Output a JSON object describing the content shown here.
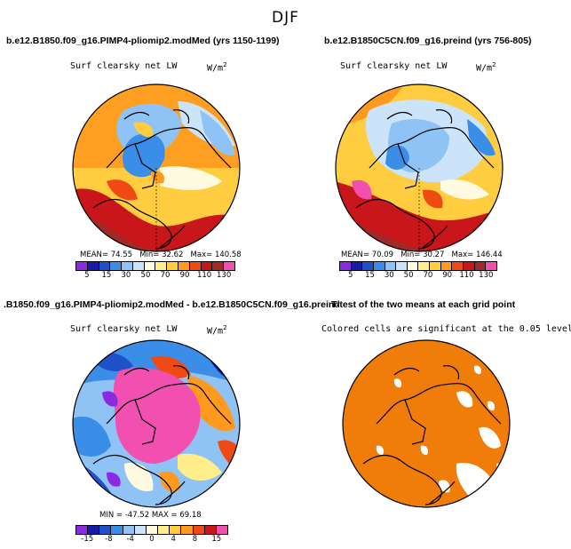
{
  "figure": {
    "title": "DJF"
  },
  "panels": [
    {
      "title": "b.e12.B1850.f09_g16.PIMP4-pliomip2.modMed (yrs 1150-1199)",
      "variable": "Surf clearsky net LW",
      "units": "W/m",
      "units_exp": "2",
      "stats": {
        "mean_label": "MEAN=",
        "mean": "74.55",
        "min_label": "Min=",
        "min": "32.62",
        "max_label": "Max=",
        "max": "140.58"
      },
      "colorbar": {
        "colors": [
          "#8a2be2",
          "#1a1aa8",
          "#1f52c9",
          "#3a8ee8",
          "#8fc3f5",
          "#cce4fa",
          "#fffbe0",
          "#ffee8a",
          "#ffcd3f",
          "#ff9a1f",
          "#f04a14",
          "#c8161a",
          "#a02a2a",
          "#f250b0"
        ],
        "labels": [
          "5",
          "15",
          "30",
          "50",
          "70",
          "90",
          "110",
          "130"
        ]
      }
    },
    {
      "title": "b.e12.B1850C5CN.f09_g16.preind (yrs 756-805)",
      "variable": "Surf clearsky net LW",
      "units": "W/m",
      "units_exp": "2",
      "stats": {
        "mean_label": "MEAN=",
        "mean": "70.09",
        "min_label": "Min=",
        "min": "30.27",
        "max_label": "Max=",
        "max": "146.44"
      },
      "colorbar": {
        "colors": [
          "#8a2be2",
          "#1a1aa8",
          "#1f52c9",
          "#3a8ee8",
          "#8fc3f5",
          "#cce4fa",
          "#fffbe0",
          "#ffee8a",
          "#ffcd3f",
          "#ff9a1f",
          "#f04a14",
          "#c8161a",
          "#a02a2a",
          "#f250b0"
        ],
        "labels": [
          "5",
          "15",
          "30",
          "50",
          "70",
          "90",
          "110",
          "130"
        ]
      }
    },
    {
      "title": ".B1850.f09_g16.PIMP4-pliomip2.modMed - b.e12.B1850C5CN.f09_g16.preind",
      "variable": "Surf clearsky net LW",
      "units": "W/m",
      "units_exp": "2",
      "stats": {
        "text": "MIN = -47.52  MAX =  69.18"
      },
      "colorbar": {
        "colors": [
          "#8a2be2",
          "#1a1aa8",
          "#1f52c9",
          "#3a8ee8",
          "#8fc3f5",
          "#cce4fa",
          "#fffbe0",
          "#ffee8a",
          "#ffcd3f",
          "#ff9a1f",
          "#f04a14",
          "#c8161a",
          "#f250b0"
        ],
        "labels": [
          "-15",
          "-8",
          "-4",
          "0",
          "4",
          "8",
          "15"
        ]
      }
    },
    {
      "title": "T-test of the two means at each grid point",
      "subtitle": "Colored cells are significant at the 0.05 level"
    }
  ],
  "palette": {
    "land_line": "#000000",
    "significant": "#f07c0a"
  }
}
